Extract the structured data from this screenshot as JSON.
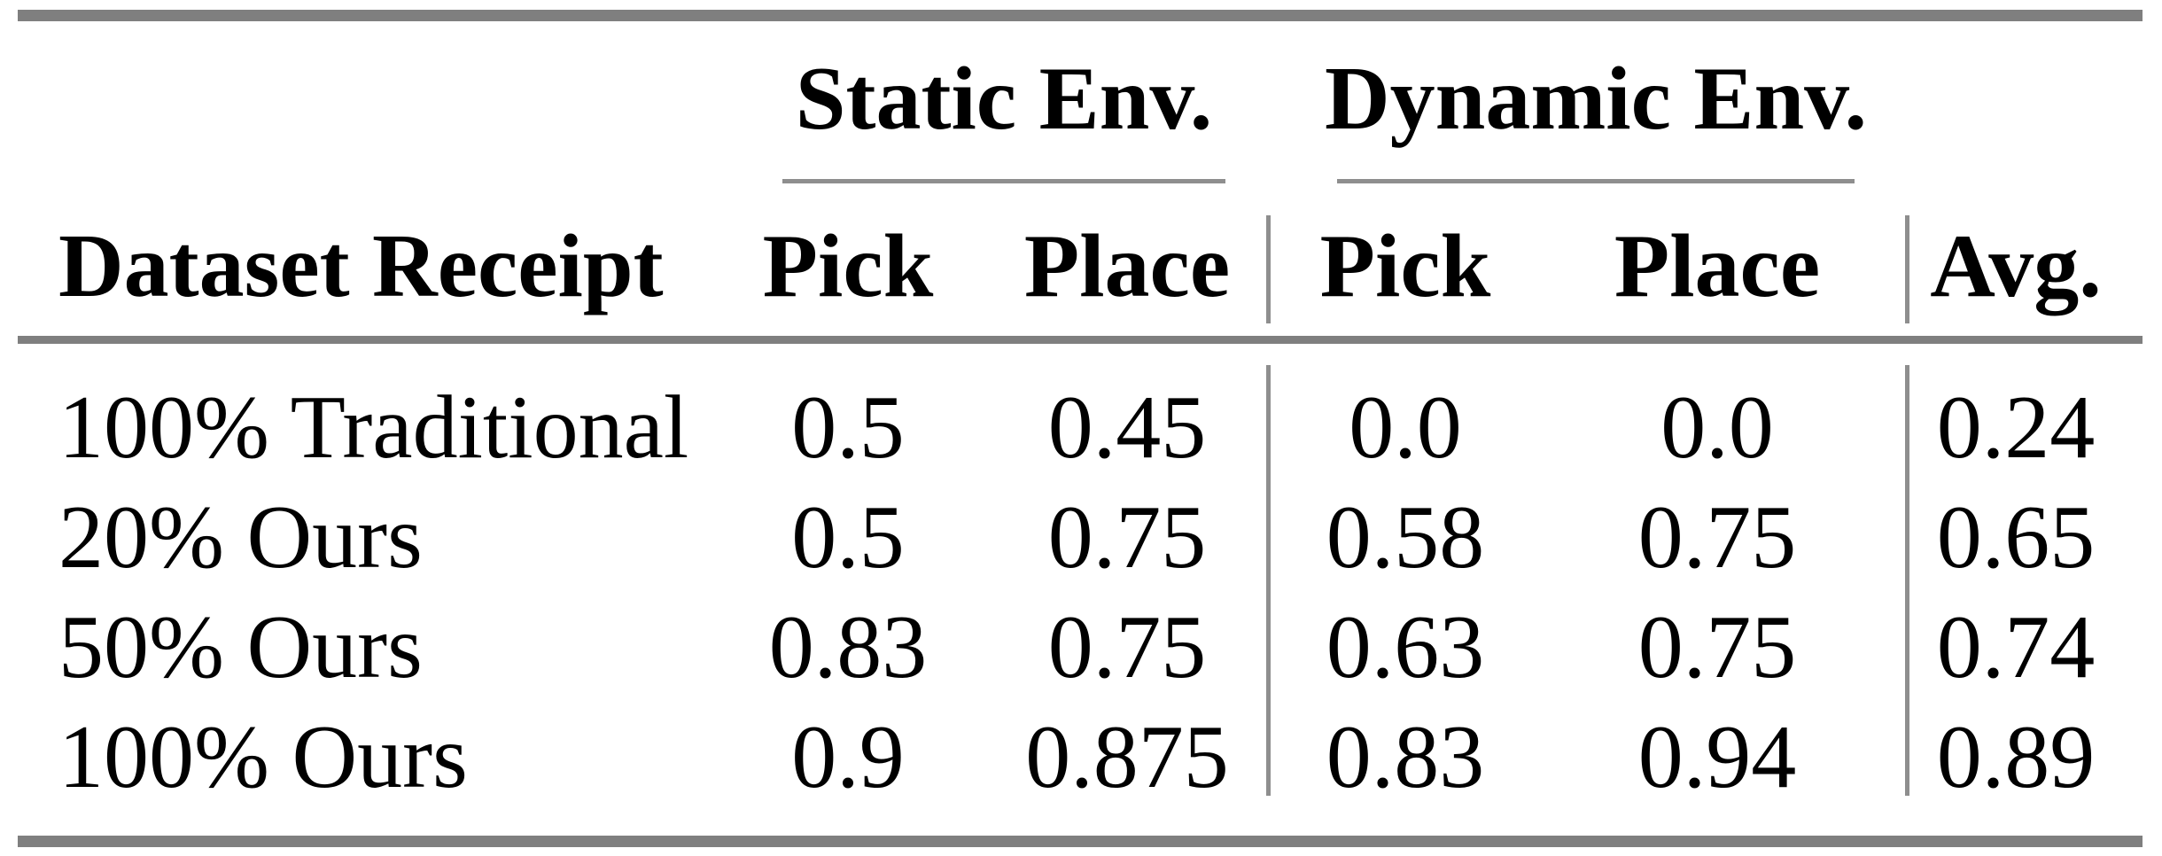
{
  "table": {
    "column_groups": [
      {
        "label": "Static Env."
      },
      {
        "label": "Dynamic Env."
      }
    ],
    "headers": {
      "row_label": "Dataset Receipt",
      "static_pick": "Pick",
      "static_place": "Place",
      "dynamic_pick": "Pick",
      "dynamic_place": "Place",
      "avg": "Avg."
    },
    "rows": [
      [
        "100% Traditional",
        "0.5",
        "0.45",
        "0.0",
        "0.0",
        "0.24"
      ],
      [
        "20% Ours",
        "0.5",
        "0.75",
        "0.58",
        "0.75",
        "0.65"
      ],
      [
        "50% Ours",
        "0.83",
        "0.75",
        "0.63",
        "0.75",
        "0.74"
      ],
      [
        "100% Ours",
        "0.9",
        "0.875",
        "0.83",
        "0.94",
        "0.89"
      ]
    ]
  },
  "colors": {
    "rule_heavy": "#7f7f7f",
    "rule_light": "#8e8e8e",
    "text": "#000000",
    "background": "#ffffff"
  }
}
